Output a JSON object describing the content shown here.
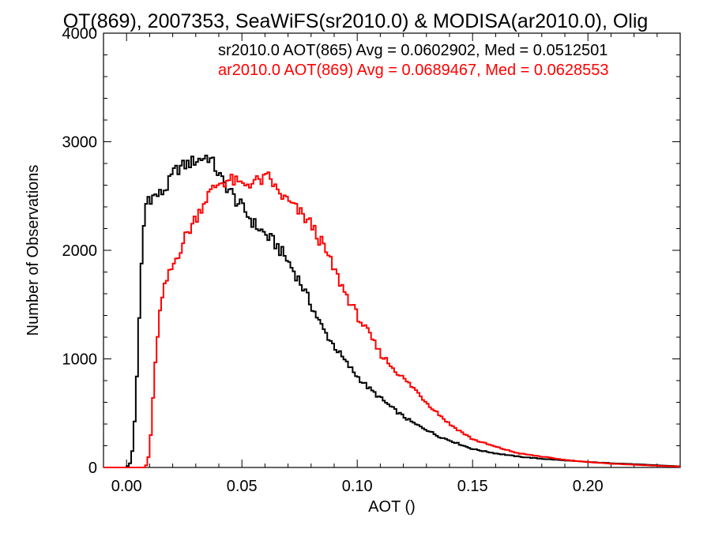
{
  "chart_data": {
    "type": "line",
    "title": "OT(869), 2007353, SeaWiFS(sr2010.0) & MODISA(ar2010.0), Olig",
    "xlabel": "AOT ()",
    "ylabel": "Number of Observations",
    "xlim": [
      -0.01,
      0.24
    ],
    "ylim": [
      0,
      4000
    ],
    "xticks": [
      0.0,
      0.05,
      0.1,
      0.15,
      0.2
    ],
    "xtick_labels": [
      "0.00",
      "0.05",
      "0.10",
      "0.15",
      "0.20"
    ],
    "yticks": [
      0,
      1000,
      2000,
      3000,
      4000
    ],
    "ytick_labels": [
      "0",
      "1000",
      "2000",
      "3000",
      "4000"
    ],
    "grid": false,
    "legend_position": "top-right",
    "series": [
      {
        "name": "sr2010.0 AOT(865) Avg = 0.0602902, Med = 0.0512501",
        "color": "#000000",
        "x": [
          -0.01,
          0.0,
          0.002,
          0.003,
          0.004,
          0.005,
          0.006,
          0.007,
          0.008,
          0.009,
          0.01,
          0.012,
          0.015,
          0.018,
          0.02,
          0.022,
          0.025,
          0.027,
          0.03,
          0.032,
          0.035,
          0.037,
          0.04,
          0.042,
          0.045,
          0.047,
          0.05,
          0.055,
          0.06,
          0.065,
          0.07,
          0.075,
          0.08,
          0.085,
          0.09,
          0.095,
          0.1,
          0.105,
          0.11,
          0.115,
          0.12,
          0.125,
          0.13,
          0.135,
          0.14,
          0.145,
          0.15,
          0.16,
          0.17,
          0.18,
          0.19,
          0.2,
          0.21,
          0.22,
          0.23,
          0.24
        ],
        "y": [
          0,
          0,
          50,
          250,
          600,
          1100,
          1600,
          2100,
          2350,
          2500,
          2480,
          2500,
          2520,
          2600,
          2700,
          2750,
          2780,
          2800,
          2830,
          2840,
          2870,
          2820,
          2700,
          2620,
          2550,
          2470,
          2400,
          2250,
          2150,
          2050,
          1900,
          1720,
          1500,
          1280,
          1120,
          970,
          840,
          730,
          640,
          550,
          470,
          400,
          350,
          290,
          250,
          210,
          170,
          130,
          100,
          80,
          65,
          50,
          40,
          30,
          20,
          10
        ]
      },
      {
        "name": "ar2010.0 AOT(869) Avg = 0.0689467, Med = 0.0628553",
        "color": "#ff0000",
        "x": [
          -0.01,
          0.0,
          0.008,
          0.009,
          0.01,
          0.011,
          0.012,
          0.013,
          0.014,
          0.015,
          0.017,
          0.02,
          0.022,
          0.025,
          0.03,
          0.035,
          0.04,
          0.045,
          0.05,
          0.055,
          0.06,
          0.062,
          0.065,
          0.07,
          0.075,
          0.08,
          0.085,
          0.09,
          0.095,
          0.1,
          0.105,
          0.11,
          0.115,
          0.12,
          0.125,
          0.13,
          0.135,
          0.14,
          0.145,
          0.15,
          0.16,
          0.17,
          0.18,
          0.19,
          0.2,
          0.21,
          0.22,
          0.23,
          0.24
        ],
        "y": [
          0,
          0,
          0,
          40,
          150,
          450,
          800,
          1100,
          1350,
          1500,
          1700,
          1850,
          1950,
          2100,
          2300,
          2500,
          2620,
          2650,
          2600,
          2630,
          2650,
          2680,
          2550,
          2450,
          2350,
          2240,
          2050,
          1820,
          1600,
          1400,
          1230,
          1050,
          930,
          820,
          720,
          600,
          500,
          400,
          330,
          260,
          190,
          130,
          100,
          70,
          50,
          35,
          25,
          15,
          8
        ]
      }
    ]
  }
}
